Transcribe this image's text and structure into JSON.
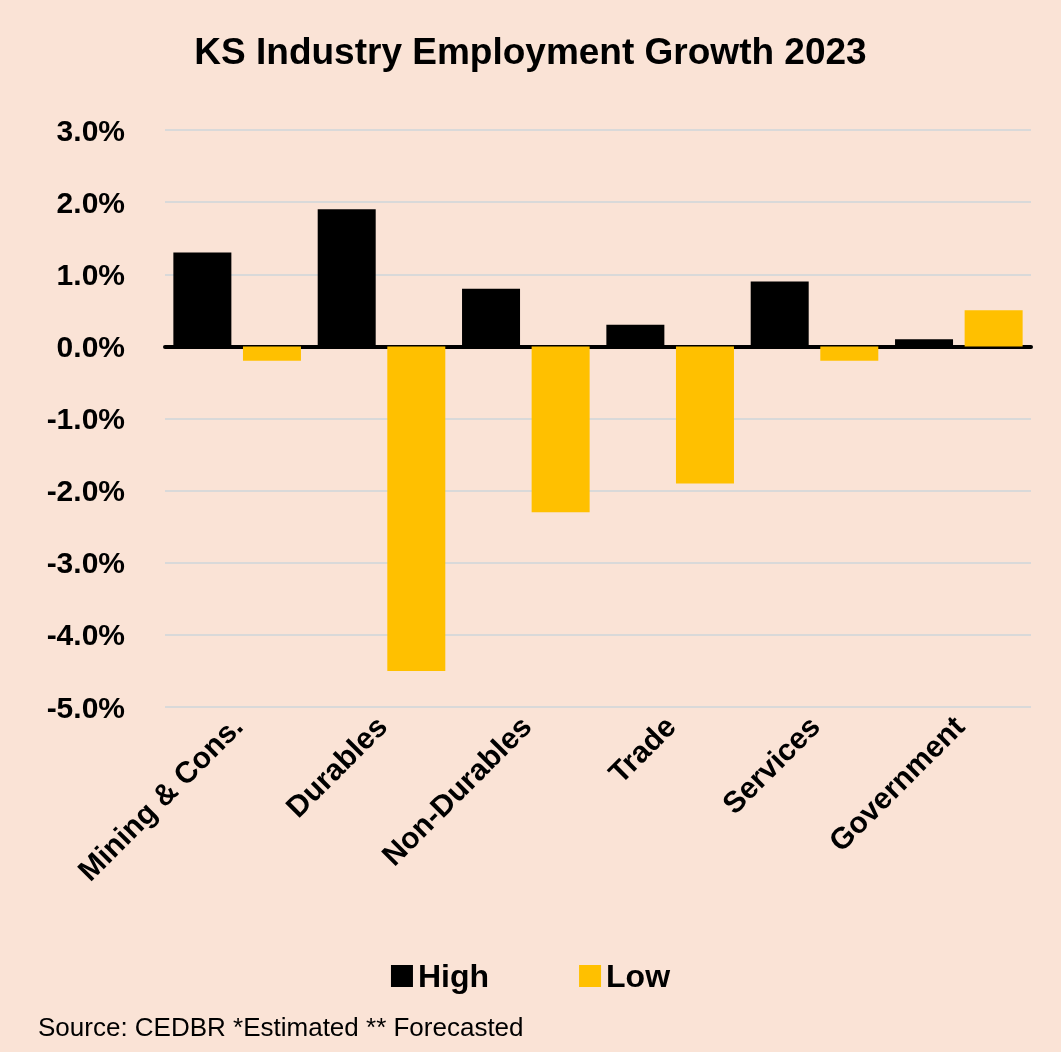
{
  "chart_data": {
    "type": "bar",
    "title": "KS Industry Employment Growth 2023",
    "categories": [
      "Mining & Cons.",
      "Durables",
      "Non-Durables",
      "Trade",
      "Services",
      "Government"
    ],
    "series": [
      {
        "name": "High",
        "color": "#000000",
        "values": [
          1.3,
          1.9,
          0.8,
          0.3,
          0.9,
          0.1
        ]
      },
      {
        "name": "Low",
        "color": "#ffc000",
        "values": [
          -0.2,
          -4.5,
          -2.3,
          -1.9,
          -0.2,
          0.5
        ]
      }
    ],
    "ylim": [
      -5,
      3
    ],
    "yticks": [
      {
        "value": -5,
        "label": "-5.0%"
      },
      {
        "value": -4,
        "label": "-4.0%"
      },
      {
        "value": -3,
        "label": "-3.0%"
      },
      {
        "value": -2,
        "label": "-2.0%"
      },
      {
        "value": -1,
        "label": "-1.0%"
      },
      {
        "value": 0,
        "label": "0.0%"
      },
      {
        "value": 1,
        "label": "1.0%"
      },
      {
        "value": 2,
        "label": "2.0%"
      },
      {
        "value": 3,
        "label": "3.0%"
      }
    ],
    "grid": "y",
    "legend": "bottom",
    "annotations": [
      "Source: CEDBR *Estimated ** Forecasted"
    ]
  }
}
